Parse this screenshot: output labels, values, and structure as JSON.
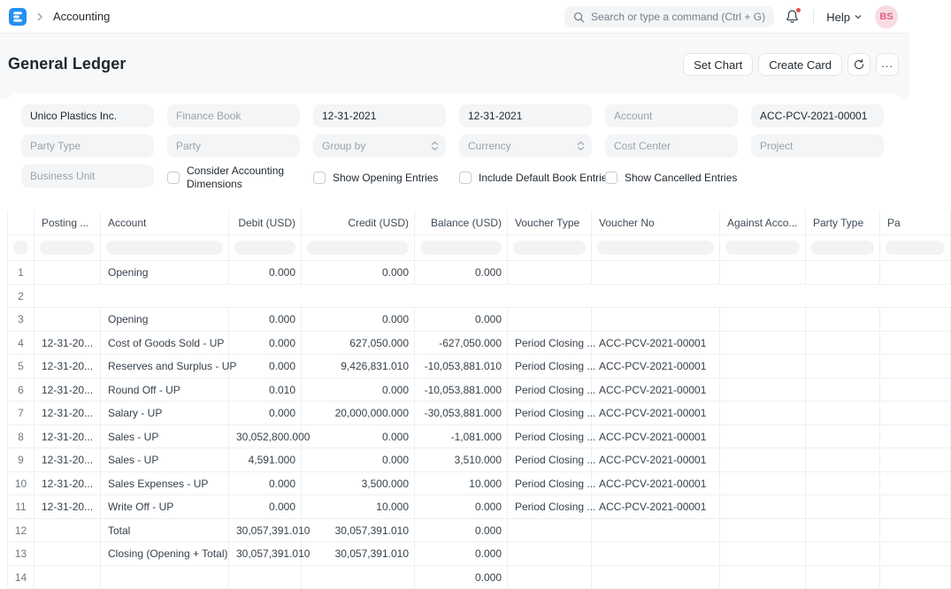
{
  "navbar": {
    "breadcrumb": "Accounting",
    "search_placeholder": "Search or type a command (Ctrl + G)",
    "help_label": "Help",
    "avatar_initials": "BS"
  },
  "page_header": {
    "title": "General Ledger",
    "set_chart_label": "Set Chart",
    "create_card_label": "Create Card"
  },
  "filters": {
    "company": {
      "value": "Unico Plastics Inc."
    },
    "finance_book": {
      "placeholder": "Finance Book"
    },
    "from_date": {
      "value": "12-31-2021"
    },
    "to_date": {
      "value": "12-31-2021"
    },
    "account": {
      "placeholder": "Account"
    },
    "voucher_no": {
      "value": "ACC-PCV-2021-00001"
    },
    "party_type": {
      "placeholder": "Party Type"
    },
    "party": {
      "placeholder": "Party"
    },
    "group_by": {
      "placeholder": "Group by"
    },
    "currency": {
      "placeholder": "Currency"
    },
    "cost_center": {
      "placeholder": "Cost Center"
    },
    "project": {
      "placeholder": "Project"
    },
    "business_unit": {
      "placeholder": "Business Unit"
    },
    "checkboxes": [
      "Consider Accounting Dimensions",
      "Show Opening Entries",
      "Include Default Book Entries",
      "Show Cancelled Entries"
    ]
  },
  "colors": {
    "accent_blue": "#2490ef",
    "notification_dot": "#e24c4c",
    "avatar_bg": "#f8dce2",
    "avatar_text": "#e0607e"
  },
  "table": {
    "headers": [
      "",
      "Posting ...",
      "Account",
      "Debit (USD)",
      "Credit (USD)",
      "Balance (USD)",
      "Voucher Type",
      "Voucher No",
      "Against Acco...",
      "Party Type",
      "Pa"
    ],
    "rows": [
      {
        "blank": false,
        "cells": [
          "1",
          "",
          "Opening",
          "0.000",
          "0.000",
          "0.000",
          "",
          "",
          "",
          "",
          ""
        ]
      },
      {
        "blank": true,
        "cells": [
          "2",
          "",
          "",
          "",
          "",
          "",
          "",
          "",
          "",
          "",
          ""
        ]
      },
      {
        "blank": false,
        "cells": [
          "3",
          "",
          "Opening",
          "0.000",
          "0.000",
          "0.000",
          "",
          "",
          "",
          "",
          ""
        ]
      },
      {
        "blank": false,
        "cells": [
          "4",
          "12-31-20...",
          "Cost of Goods Sold - UP",
          "0.000",
          "627,050.000",
          "-627,050.000",
          "Period Closing ...",
          "ACC-PCV-2021-00001",
          "",
          "",
          ""
        ]
      },
      {
        "blank": false,
        "cells": [
          "5",
          "12-31-20...",
          "Reserves and Surplus - UP",
          "0.000",
          "9,426,831.010",
          "-10,053,881.010",
          "Period Closing ...",
          "ACC-PCV-2021-00001",
          "",
          "",
          ""
        ]
      },
      {
        "blank": false,
        "cells": [
          "6",
          "12-31-20...",
          "Round Off - UP",
          "0.010",
          "0.000",
          "-10,053,881.000",
          "Period Closing ...",
          "ACC-PCV-2021-00001",
          "",
          "",
          ""
        ]
      },
      {
        "blank": false,
        "cells": [
          "7",
          "12-31-20...",
          "Salary - UP",
          "0.000",
          "20,000,000.000",
          "-30,053,881.000",
          "Period Closing ...",
          "ACC-PCV-2021-00001",
          "",
          "",
          ""
        ]
      },
      {
        "blank": false,
        "cells": [
          "8",
          "12-31-20...",
          "Sales - UP",
          "30,052,800.000",
          "0.000",
          "-1,081.000",
          "Period Closing ...",
          "ACC-PCV-2021-00001",
          "",
          "",
          ""
        ]
      },
      {
        "blank": false,
        "cells": [
          "9",
          "12-31-20...",
          "Sales - UP",
          "4,591.000",
          "0.000",
          "3,510.000",
          "Period Closing ...",
          "ACC-PCV-2021-00001",
          "",
          "",
          ""
        ]
      },
      {
        "blank": false,
        "cells": [
          "10",
          "12-31-20...",
          "Sales Expenses - UP",
          "0.000",
          "3,500.000",
          "10.000",
          "Period Closing ...",
          "ACC-PCV-2021-00001",
          "",
          "",
          ""
        ]
      },
      {
        "blank": false,
        "cells": [
          "11",
          "12-31-20...",
          "Write Off - UP",
          "0.000",
          "10.000",
          "0.000",
          "Period Closing ...",
          "ACC-PCV-2021-00001",
          "",
          "",
          ""
        ]
      },
      {
        "blank": false,
        "cells": [
          "12",
          "",
          "Total",
          "30,057,391.010",
          "30,057,391.010",
          "0.000",
          "",
          "",
          "",
          "",
          ""
        ]
      },
      {
        "blank": false,
        "cells": [
          "13",
          "",
          "Closing (Opening + Total)",
          "30,057,391.010",
          "30,057,391.010",
          "0.000",
          "",
          "",
          "",
          "",
          ""
        ]
      },
      {
        "blank": false,
        "cells": [
          "14",
          "",
          "",
          "",
          "",
          "0.000",
          "",
          "",
          "",
          "",
          ""
        ]
      }
    ]
  }
}
